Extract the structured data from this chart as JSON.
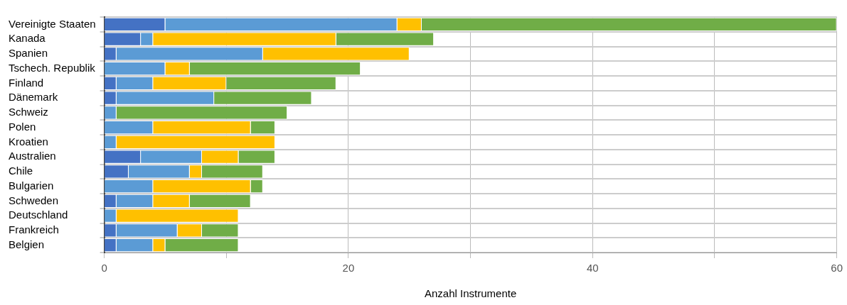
{
  "chart_data": {
    "type": "bar",
    "orientation": "horizontal",
    "stacked": true,
    "categories": [
      "Vereinigte Staaten",
      "Kanada",
      "Spanien",
      "Tschech. Republik",
      "Finland",
      "Dänemark",
      "Schweiz",
      "Polen",
      "Kroatien",
      "Australien",
      "Chile",
      "Bulgarien",
      "Schweden",
      "Deutschland",
      "Frankreich",
      "Belgien"
    ],
    "series": [
      {
        "color": "#4472c4",
        "values": [
          5,
          3,
          1,
          0,
          1,
          1,
          0,
          0,
          0,
          3,
          2,
          0,
          1,
          0,
          1,
          1
        ]
      },
      {
        "color": "#5b9bd5",
        "values": [
          19,
          1,
          12,
          5,
          3,
          8,
          1,
          4,
          1,
          5,
          5,
          4,
          3,
          1,
          5,
          3
        ]
      },
      {
        "color": "#ffc000",
        "values": [
          2,
          15,
          12,
          2,
          6,
          0,
          0,
          8,
          13,
          3,
          1,
          8,
          3,
          10,
          2,
          1
        ]
      },
      {
        "color": "#70ad47",
        "values": [
          34,
          8,
          0,
          14,
          9,
          8,
          14,
          2,
          0,
          3,
          5,
          1,
          5,
          0,
          3,
          6
        ]
      }
    ],
    "xlabel": "Anzahl Instrumente",
    "xlim": [
      0,
      60
    ],
    "xticks": [
      0,
      {
        "value": 10,
        "label": null
      },
      20,
      {
        "value": 30,
        "label": null
      },
      40,
      {
        "value": 50,
        "label": null
      },
      60
    ],
    "grid": true,
    "legend": false
  }
}
